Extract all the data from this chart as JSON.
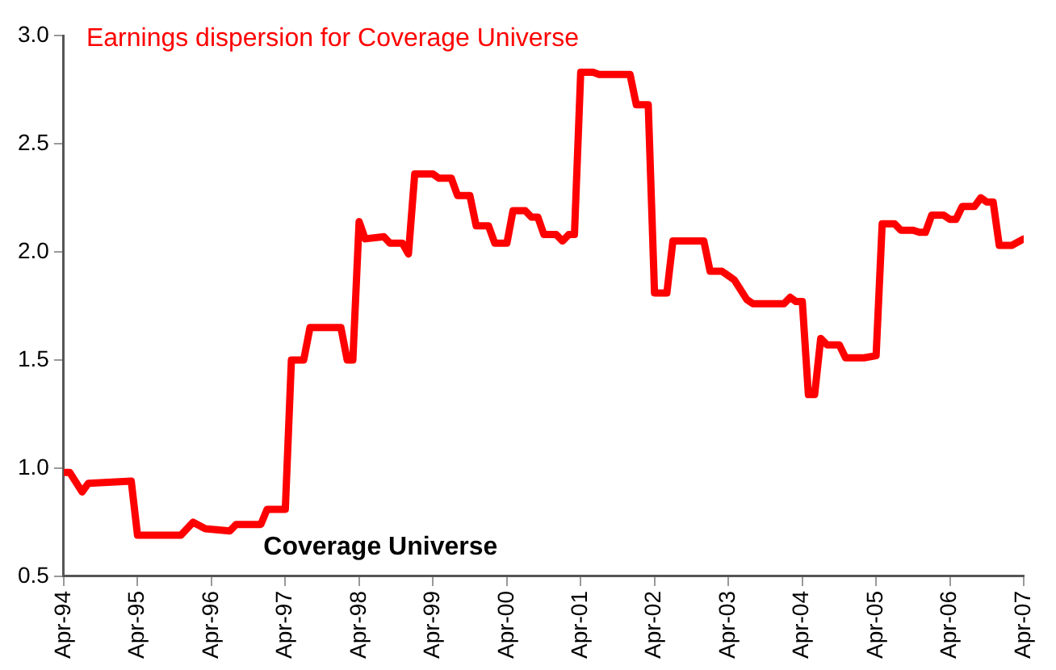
{
  "chart_data": {
    "type": "line",
    "annotations": [
      "Coverage Universe"
    ],
    "x": [
      "1994-04",
      "1994-05",
      "1994-07",
      "1994-08",
      "1995-03",
      "1995-04",
      "1995-11",
      "1996-01",
      "1996-03",
      "1996-07",
      "1996-08",
      "1996-12",
      "1997-01",
      "1997-04",
      "1997-05",
      "1997-07",
      "1997-08",
      "1998-01",
      "1998-02",
      "1998-03",
      "1998-04",
      "1998-05",
      "1998-08",
      "1998-09",
      "1998-11",
      "1998-12",
      "1999-01",
      "1999-04",
      "1999-05",
      "1999-07",
      "1999-08",
      "1999-10",
      "1999-11",
      "2000-01",
      "2000-02",
      "2000-04",
      "2000-05",
      "2000-07",
      "2000-08",
      "2000-09",
      "2000-10",
      "2000-12",
      "2001-01",
      "2001-02",
      "2001-03",
      "2001-04",
      "2001-06",
      "2001-07",
      "2001-12",
      "2002-01",
      "2002-03",
      "2002-04",
      "2002-06",
      "2002-07",
      "2002-12",
      "2003-01",
      "2003-03",
      "2003-04",
      "2003-05",
      "2003-07",
      "2003-08",
      "2004-01",
      "2004-02",
      "2004-03",
      "2004-04",
      "2004-05",
      "2004-06",
      "2004-07",
      "2004-08",
      "2004-10",
      "2004-11",
      "2005-02",
      "2005-04",
      "2005-05",
      "2005-07",
      "2005-08",
      "2005-10",
      "2005-11",
      "2005-12",
      "2006-01",
      "2006-03",
      "2006-04",
      "2006-05",
      "2006-06",
      "2006-08",
      "2006-09",
      "2006-10",
      "2006-11",
      "2006-12",
      "2007-02",
      "2007-04"
    ],
    "series": [
      {
        "name": "Earnings dispersion for Coverage Universe",
        "color": "#ff0000",
        "values": [
          0.98,
          0.98,
          0.89,
          0.93,
          0.94,
          0.69,
          0.69,
          0.75,
          0.72,
          0.71,
          0.74,
          0.74,
          0.81,
          0.81,
          1.5,
          1.5,
          1.65,
          1.65,
          1.5,
          1.5,
          2.14,
          2.06,
          2.07,
          2.04,
          2.04,
          1.99,
          2.36,
          2.36,
          2.34,
          2.34,
          2.26,
          2.26,
          2.12,
          2.12,
          2.04,
          2.04,
          2.19,
          2.19,
          2.16,
          2.16,
          2.08,
          2.08,
          2.05,
          2.08,
          2.08,
          2.83,
          2.83,
          2.82,
          2.82,
          2.68,
          2.68,
          1.81,
          1.81,
          2.05,
          2.05,
          1.91,
          1.91,
          1.89,
          1.87,
          1.78,
          1.76,
          1.76,
          1.79,
          1.77,
          1.77,
          1.34,
          1.34,
          1.6,
          1.57,
          1.57,
          1.51,
          1.51,
          1.52,
          2.13,
          2.13,
          2.1,
          2.1,
          2.09,
          2.09,
          2.17,
          2.17,
          2.15,
          2.15,
          2.21,
          2.21,
          2.25,
          2.23,
          2.23,
          2.03,
          2.03,
          2.06
        ]
      }
    ],
    "xlim": [
      "1994-04",
      "2007-04"
    ],
    "xticks": [
      {
        "value": "1994-04",
        "label": "Apr-94"
      },
      {
        "value": "1995-04",
        "label": "Apr-95"
      },
      {
        "value": "1996-04",
        "label": "Apr-96"
      },
      {
        "value": "1997-04",
        "label": "Apr-97"
      },
      {
        "value": "1998-04",
        "label": "Apr-98"
      },
      {
        "value": "1999-04",
        "label": "Apr-99"
      },
      {
        "value": "2000-04",
        "label": "Apr-00"
      },
      {
        "value": "2001-04",
        "label": "Apr-01"
      },
      {
        "value": "2002-04",
        "label": "Apr-02"
      },
      {
        "value": "2003-04",
        "label": "Apr-03"
      },
      {
        "value": "2004-04",
        "label": "Apr-04"
      },
      {
        "value": "2005-04",
        "label": "Apr-05"
      },
      {
        "value": "2006-04",
        "label": "Apr-06"
      },
      {
        "value": "2007-04",
        "label": "Apr-07"
      }
    ],
    "ylim": [
      0.5,
      3.0
    ],
    "yticks": [
      {
        "value": 0.5,
        "label": "0.5"
      },
      {
        "value": 1.0,
        "label": "1.0"
      },
      {
        "value": 1.5,
        "label": "1.5"
      },
      {
        "value": 2.0,
        "label": "2.0"
      },
      {
        "value": 2.5,
        "label": "2.5"
      },
      {
        "value": 3.0,
        "label": "3.0"
      }
    ],
    "grid": false,
    "legend": "top left",
    "marker": "none",
    "line_style": "solid"
  }
}
